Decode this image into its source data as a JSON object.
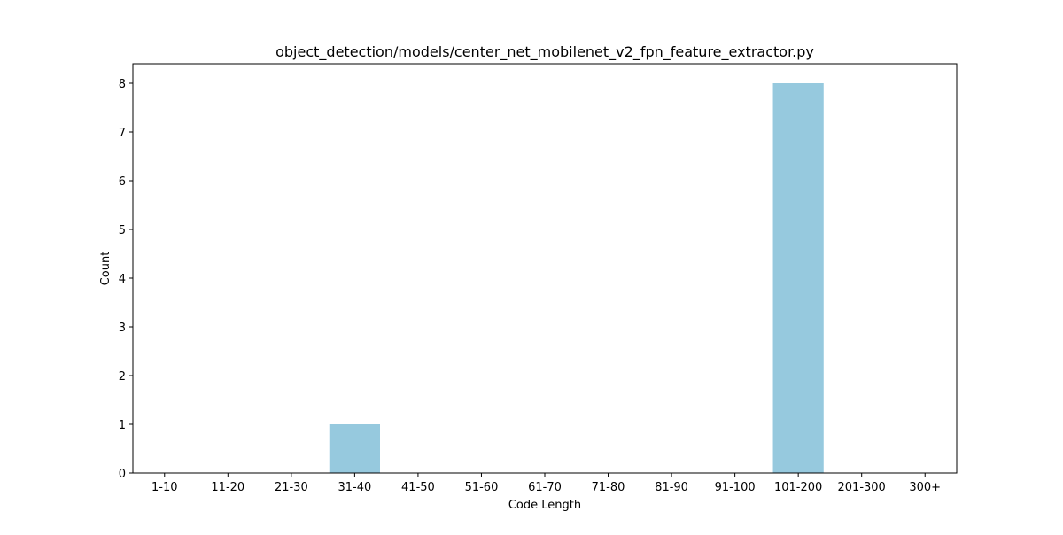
{
  "chart_data": {
    "type": "bar",
    "title": "object_detection/models/center_net_mobilenet_v2_fpn_feature_extractor.py",
    "xlabel": "Code Length",
    "ylabel": "Count",
    "categories": [
      "1-10",
      "11-20",
      "21-30",
      "31-40",
      "41-50",
      "51-60",
      "61-70",
      "71-80",
      "81-90",
      "91-100",
      "101-200",
      "201-300",
      "300+"
    ],
    "values": [
      0,
      0,
      0,
      1,
      0,
      0,
      0,
      0,
      0,
      0,
      8,
      0,
      0
    ],
    "ylim": [
      0,
      8.4
    ],
    "yticks": [
      0,
      1,
      2,
      3,
      4,
      5,
      6,
      7,
      8
    ],
    "grid": false,
    "bar_color": "#96c9de"
  }
}
